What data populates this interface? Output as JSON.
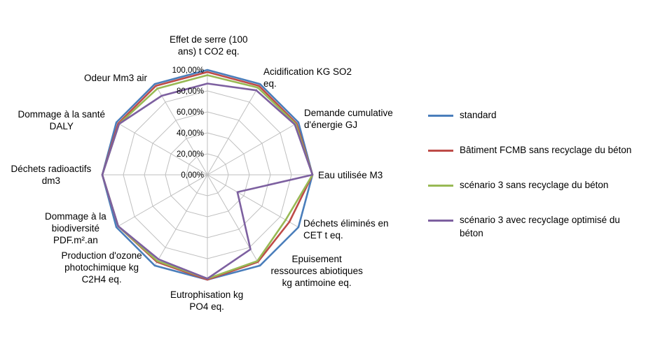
{
  "chart_data": {
    "type": "radar",
    "categories": [
      "Effet de serre (100 ans) t CO2 eq.",
      "Acidification KG SO2 eq.",
      "Demande cumulative d'énergie GJ",
      "Eau utilisée M3",
      "Déchets éliminés en CET t eq.",
      "Epuisement ressources abiotiques kg antimoine eq.",
      "Eutrophisation kg PO4 eq.",
      "Production d'ozone photochimique kg C2H4 eq.",
      "Dommage à la biodiversité PDF.m².an",
      "Déchets radioactifs dm3",
      "Dommage à la santé DALY",
      "Odeur Mm3 air"
    ],
    "category_lines": [
      [
        "Effet de serre (100",
        "ans) t CO2 eq."
      ],
      [
        "Acidification KG SO2",
        "eq."
      ],
      [
        "Demande cumulative",
        "d'énergie GJ"
      ],
      [
        "Eau utilisée M3"
      ],
      [
        "Déchets éliminés en",
        "CET t eq."
      ],
      [
        "Epuisement",
        "ressources abiotiques",
        "kg antimoine eq."
      ],
      [
        "Eutrophisation kg",
        "PO4 eq."
      ],
      [
        "Production d'ozone",
        "photochimique  kg",
        "C2H4 eq."
      ],
      [
        "Dommage à la",
        "biodiversité",
        "PDF.m².an"
      ],
      [
        "Déchets radioactifs",
        "dm3"
      ],
      [
        "Dommage à la santé",
        "DALY"
      ],
      [
        "Odeur Mm3 air"
      ]
    ],
    "radial_ticks": [
      "0,00%",
      "20,00%",
      "40,00%",
      "60,00%",
      "80,00%",
      "100,00%"
    ],
    "rlim": [
      0,
      100
    ],
    "legend_position": "right",
    "series": [
      {
        "name": "standard",
        "color": "#4a7ebb",
        "values": [
          100,
          100,
          100,
          100,
          100,
          100,
          100,
          100,
          100,
          100,
          100,
          100
        ]
      },
      {
        "name": "Bâtiment FCMB sans recyclage du béton",
        "color": "#be4b48",
        "values": [
          98,
          98,
          98,
          100,
          90,
          96,
          100,
          96,
          98,
          100,
          98,
          98
        ]
      },
      {
        "name": "scénario 3 sans recyclage du béton",
        "color": "#98b954",
        "values": [
          95,
          96,
          97,
          100,
          86,
          95,
          99,
          95,
          98,
          100,
          97,
          95
        ]
      },
      {
        "name": "scénario 3 avec recyclage optimisé du béton",
        "color": "#7d60a0",
        "values": [
          87,
          93,
          96,
          100,
          33,
          82,
          99,
          93,
          98,
          100,
          97,
          87
        ]
      }
    ]
  },
  "legend_lines": [
    [
      "standard"
    ],
    [
      "Bâtiment FCMB sans recyclage du béton"
    ],
    [
      "scénario 3 sans recyclage du béton"
    ],
    [
      "scénario 3 avec recyclage optimisé du",
      "béton"
    ]
  ]
}
